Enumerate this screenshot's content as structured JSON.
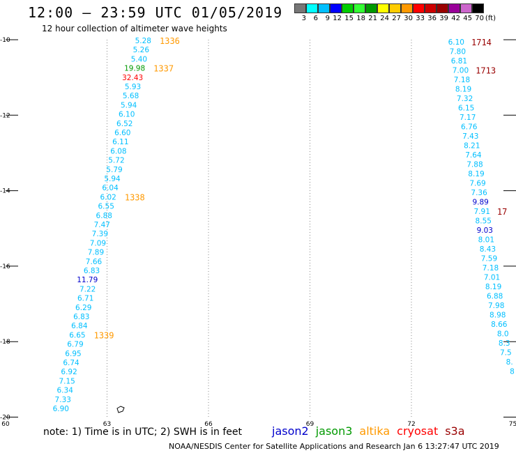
{
  "header": {
    "title": "12:00 – 23:59 UTC 01/05/2019",
    "subtitle": "12 hour collection of altimeter wave heights"
  },
  "colorbar": {
    "colors": [
      "#777777",
      "#00ffff",
      "#00bfff",
      "#0000ff",
      "#00cc00",
      "#33ff33",
      "#009900",
      "#ffff00",
      "#ffcc00",
      "#ff9900",
      "#ff0000",
      "#cc0000",
      "#990000",
      "#990099",
      "#cc66cc",
      "#000000"
    ],
    "labels": [
      "3",
      "6",
      "9",
      "12",
      "15",
      "18",
      "21",
      "24",
      "27",
      "30",
      "33",
      "36",
      "39",
      "42",
      "45",
      "70"
    ],
    "unit": "(ft)"
  },
  "axes": {
    "lon_ticks": [
      "60",
      "63",
      "66",
      "69",
      "72",
      "75"
    ],
    "lat_ticks": [
      "-10",
      "-12",
      "-14",
      "-16",
      "-18",
      "-20"
    ]
  },
  "track_west": {
    "points": [
      {
        "v": "5.28",
        "c": "#00bfff"
      },
      {
        "v": "5.26",
        "c": "#00bfff"
      },
      {
        "v": "5.40",
        "c": "#00bfff"
      },
      {
        "v": "19.98",
        "c": "#009900"
      },
      {
        "v": "32.43",
        "c": "#ff0000"
      },
      {
        "v": "5.93",
        "c": "#00bfff"
      },
      {
        "v": "5.68",
        "c": "#00bfff"
      },
      {
        "v": "5.94",
        "c": "#00bfff"
      },
      {
        "v": "6.10",
        "c": "#00bfff"
      },
      {
        "v": "6.52",
        "c": "#00bfff"
      },
      {
        "v": "6.60",
        "c": "#00bfff"
      },
      {
        "v": "6.11",
        "c": "#00bfff"
      },
      {
        "v": "6.08",
        "c": "#00bfff"
      },
      {
        "v": "5.72",
        "c": "#00bfff"
      },
      {
        "v": "5.79",
        "c": "#00bfff"
      },
      {
        "v": "5.94",
        "c": "#00bfff"
      },
      {
        "v": "6.04",
        "c": "#00bfff"
      },
      {
        "v": "6.02",
        "c": "#00bfff"
      },
      {
        "v": "6.55",
        "c": "#00bfff"
      },
      {
        "v": "6.88",
        "c": "#00bfff"
      },
      {
        "v": "7.47",
        "c": "#00bfff"
      },
      {
        "v": "7.39",
        "c": "#00bfff"
      },
      {
        "v": "7.09",
        "c": "#00bfff"
      },
      {
        "v": "7.89",
        "c": "#00bfff"
      },
      {
        "v": "7.66",
        "c": "#00bfff"
      },
      {
        "v": "6.83",
        "c": "#00bfff"
      },
      {
        "v": "11.79",
        "c": "#0000cc"
      },
      {
        "v": "7.22",
        "c": "#00bfff"
      },
      {
        "v": "6.71",
        "c": "#00bfff"
      },
      {
        "v": "6.29",
        "c": "#00bfff"
      },
      {
        "v": "6.83",
        "c": "#00bfff"
      },
      {
        "v": "6.84",
        "c": "#00bfff"
      },
      {
        "v": "6.65",
        "c": "#00bfff"
      },
      {
        "v": "6.79",
        "c": "#00bfff"
      },
      {
        "v": "6.95",
        "c": "#00bfff"
      },
      {
        "v": "6.74",
        "c": "#00bfff"
      },
      {
        "v": "6.92",
        "c": "#00bfff"
      },
      {
        "v": "7.15",
        "c": "#00bfff"
      },
      {
        "v": "6.34",
        "c": "#00bfff"
      },
      {
        "v": "7.33",
        "c": "#00bfff"
      },
      {
        "v": "6.90",
        "c": "#00bfff"
      }
    ],
    "times": [
      {
        "t": "1336",
        "idx": 0
      },
      {
        "t": "1337",
        "idx": 3
      },
      {
        "t": "1338",
        "idx": 17
      },
      {
        "t": "1339",
        "idx": 32
      }
    ],
    "time_color": "#ff9900"
  },
  "track_east": {
    "points": [
      {
        "v": "6.10",
        "c": "#00bfff"
      },
      {
        "v": "7.80",
        "c": "#00bfff"
      },
      {
        "v": "6.81",
        "c": "#00bfff"
      },
      {
        "v": "7.00",
        "c": "#00bfff"
      },
      {
        "v": "7.18",
        "c": "#00bfff"
      },
      {
        "v": "8.19",
        "c": "#00bfff"
      },
      {
        "v": "7.32",
        "c": "#00bfff"
      },
      {
        "v": "6.15",
        "c": "#00bfff"
      },
      {
        "v": "7.17",
        "c": "#00bfff"
      },
      {
        "v": "6.76",
        "c": "#00bfff"
      },
      {
        "v": "7.43",
        "c": "#00bfff"
      },
      {
        "v": "8.21",
        "c": "#00bfff"
      },
      {
        "v": "7.64",
        "c": "#00bfff"
      },
      {
        "v": "7.88",
        "c": "#00bfff"
      },
      {
        "v": "8.19",
        "c": "#00bfff"
      },
      {
        "v": "7.69",
        "c": "#00bfff"
      },
      {
        "v": "7.36",
        "c": "#00bfff"
      },
      {
        "v": "9.89",
        "c": "#0000cc"
      },
      {
        "v": "7.91",
        "c": "#00bfff"
      },
      {
        "v": "8.55",
        "c": "#00bfff"
      },
      {
        "v": "9.03",
        "c": "#0000cc"
      },
      {
        "v": "8.01",
        "c": "#00bfff"
      },
      {
        "v": "8.43",
        "c": "#00bfff"
      },
      {
        "v": "7.59",
        "c": "#00bfff"
      },
      {
        "v": "7.18",
        "c": "#00bfff"
      },
      {
        "v": "7.01",
        "c": "#00bfff"
      },
      {
        "v": "8.19",
        "c": "#00bfff"
      },
      {
        "v": "6.88",
        "c": "#00bfff"
      },
      {
        "v": "7.98",
        "c": "#00bfff"
      },
      {
        "v": "8.98",
        "c": "#00bfff"
      },
      {
        "v": "8.66",
        "c": "#00bfff"
      },
      {
        "v": "8.0",
        "c": "#00bfff"
      },
      {
        "v": "8.3",
        "c": "#00bfff"
      },
      {
        "v": "7.5",
        "c": "#00bfff"
      },
      {
        "v": "8.",
        "c": "#00bfff"
      },
      {
        "v": "8",
        "c": "#00bfff"
      }
    ],
    "times": [
      {
        "t": "1714",
        "idx": 0
      },
      {
        "t": "1713",
        "idx": 3
      },
      {
        "t": "17",
        "idx": 18
      }
    ],
    "time_color": "#990000"
  },
  "footer": {
    "note": "note: 1) Time is in UTC; 2) SWH is in feet",
    "satellites": [
      {
        "name": "jason2",
        "color": "#0000cc"
      },
      {
        "name": "jason3",
        "color": "#009900"
      },
      {
        "name": "altika",
        "color": "#ff9900"
      },
      {
        "name": "cryosat",
        "color": "#ff0000"
      },
      {
        "name": "s3a",
        "color": "#990000"
      }
    ],
    "credit": "NOAA/NESDIS Center for Satellite Applications and Research   Jan  6 13:27:47 UTC 2019"
  }
}
